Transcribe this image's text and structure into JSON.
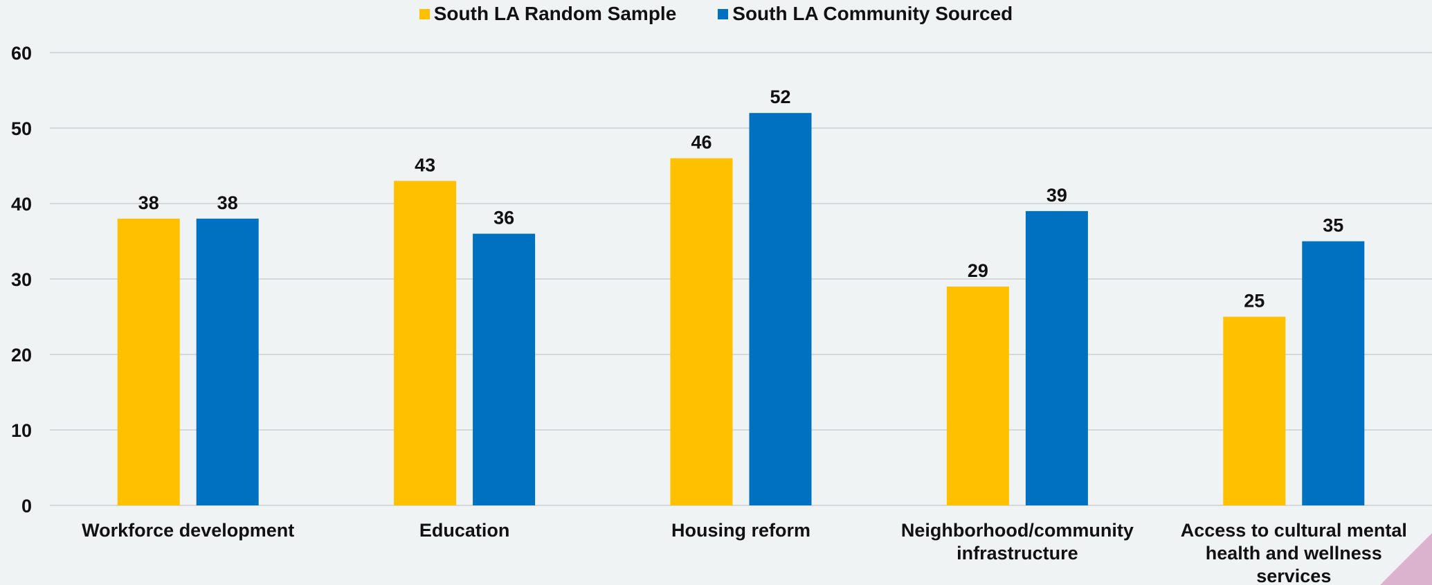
{
  "chart_data": {
    "type": "bar",
    "categories": [
      [
        "Workforce development"
      ],
      [
        "Education"
      ],
      [
        "Housing reform"
      ],
      [
        "Neighborhood/community",
        "infrastructure"
      ],
      [
        "Access to cultural mental",
        "health and wellness",
        "services"
      ]
    ],
    "series": [
      {
        "name": "South LA Random Sample",
        "color": "#ffc000",
        "values": [
          38,
          43,
          46,
          29,
          25
        ]
      },
      {
        "name": "South LA Community Sourced",
        "color": "#0070c0",
        "values": [
          38,
          36,
          52,
          39,
          35
        ]
      }
    ],
    "y_ticks": [
      "0",
      "10",
      "20",
      "30",
      "40",
      "50",
      "60"
    ],
    "ylim": [
      0,
      60
    ],
    "grid": true,
    "legend_position": "top-center",
    "data_labels": true
  }
}
